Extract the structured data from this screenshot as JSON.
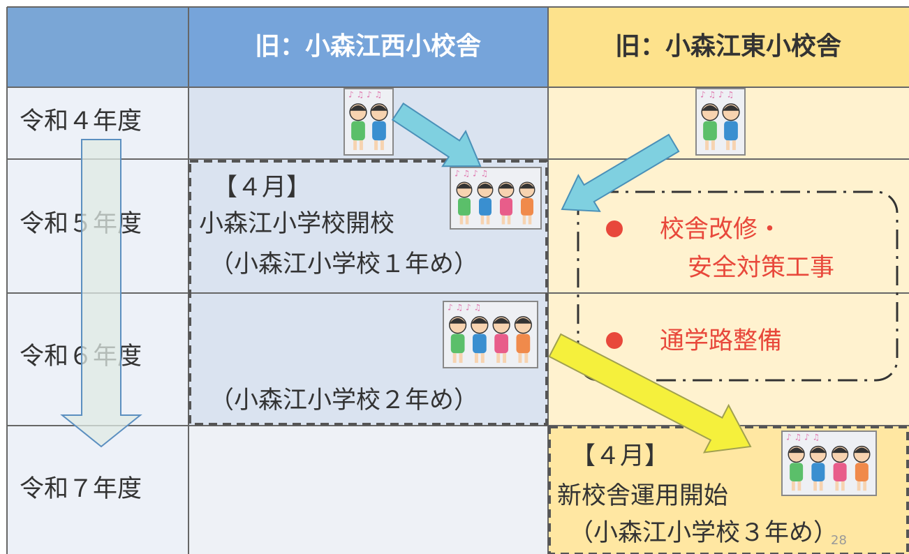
{
  "table": {
    "columns": [
      "旧：小森江西小校舎",
      "旧：小森江東小校舎"
    ],
    "rows": [
      "令和４年度",
      "令和５年度",
      "令和６年度",
      "令和７年度"
    ]
  },
  "west": {
    "month": "【４月】",
    "title": "小森江小学校開校",
    "note_1": "（小森江小学校１年め）",
    "note_2": "（小森江小学校２年め）"
  },
  "east": {
    "month": "【４月】",
    "title": "新校舎運用開始",
    "note": "（小森江小学校３年め）"
  },
  "works": {
    "items": [
      [
        "校舎改修・",
        "安全対策工事"
      ],
      [
        "通学路整備"
      ]
    ]
  },
  "page_number": "28"
}
